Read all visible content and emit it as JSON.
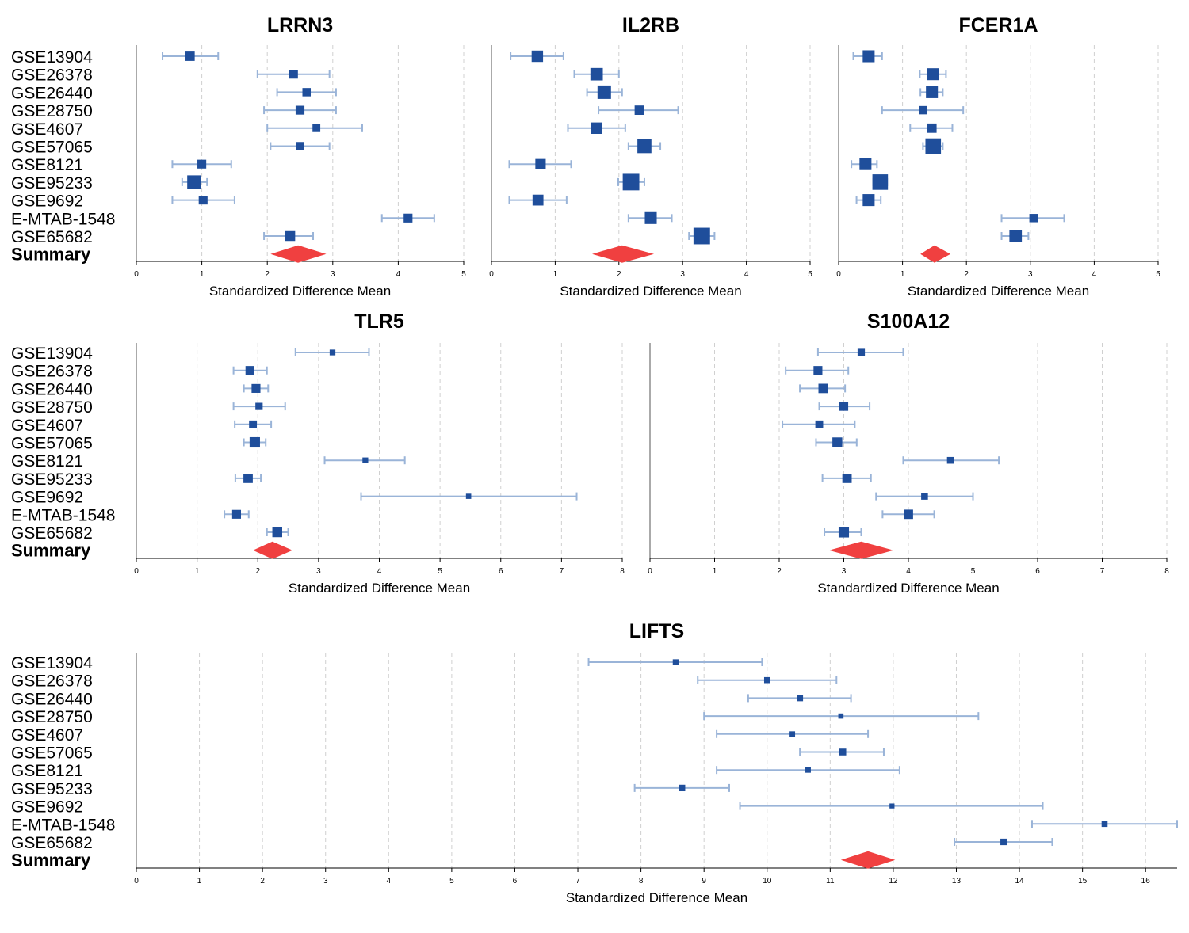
{
  "study_labels": [
    "GSE13904",
    "GSE26378",
    "GSE26440",
    "GSE28750",
    "GSE4607",
    "GSE57065",
    "GSE8121",
    "GSE95233",
    "GSE9692",
    "E-MTAB-1548",
    "GSE65682"
  ],
  "summary_label": "Summary",
  "x_label": "Standardized Difference Mean",
  "colors": {
    "point": "#1f4e9b",
    "ci": "#9ab4d8",
    "summary": "#f04040",
    "grid": "#d0d0d0",
    "axis": "#000000"
  },
  "chart_data": [
    {
      "type": "forest",
      "title": "LRRN3",
      "xlim": [
        0,
        5
      ],
      "xticks": [
        0,
        1,
        2,
        3,
        4,
        5
      ],
      "grid": true,
      "points": [
        0.82,
        2.4,
        2.6,
        2.5,
        2.75,
        2.5,
        1.0,
        0.88,
        1.02,
        4.15,
        2.35
      ],
      "lower": [
        0.4,
        1.85,
        2.15,
        1.95,
        2.0,
        2.05,
        0.55,
        0.7,
        0.55,
        3.75,
        1.95
      ],
      "upper": [
        1.25,
        2.95,
        3.05,
        3.05,
        3.45,
        2.95,
        1.45,
        1.08,
        1.5,
        4.55,
        2.7
      ],
      "weights": [
        1.2,
        1.1,
        1.0,
        1.1,
        0.9,
        1.0,
        1.1,
        2.0,
        1.1,
        1.1,
        1.3
      ],
      "summary": {
        "estimate": 2.47,
        "lower": 2.05,
        "upper": 2.9
      }
    },
    {
      "type": "forest",
      "title": "IL2RB",
      "xlim": [
        0,
        5
      ],
      "xticks": [
        0,
        1,
        2,
        3,
        4,
        5
      ],
      "grid": true,
      "points": [
        0.72,
        1.65,
        1.77,
        2.32,
        1.65,
        2.4,
        0.77,
        2.19,
        0.73,
        2.5,
        3.3
      ],
      "lower": [
        0.3,
        1.3,
        1.5,
        1.68,
        1.2,
        2.15,
        0.28,
        1.99,
        0.28,
        2.15,
        3.1
      ],
      "upper": [
        1.13,
        2.0,
        2.05,
        2.93,
        2.1,
        2.65,
        1.25,
        2.4,
        1.18,
        2.83,
        3.5
      ],
      "weights": [
        1.6,
        1.8,
        2.0,
        1.2,
        1.6,
        2.1,
        1.4,
        2.6,
        1.5,
        1.7,
        2.6
      ],
      "summary": {
        "estimate": 2.05,
        "lower": 1.58,
        "upper": 2.55
      }
    },
    {
      "type": "forest",
      "title": "FCER1A",
      "xlim": [
        0,
        5
      ],
      "xticks": [
        0,
        1,
        2,
        3,
        4,
        5
      ],
      "grid": true,
      "points": [
        0.47,
        1.48,
        1.46,
        1.32,
        1.46,
        1.48,
        0.42,
        0.65,
        0.47,
        3.05,
        2.77
      ],
      "lower": [
        0.23,
        1.27,
        1.28,
        0.68,
        1.12,
        1.32,
        0.2,
        0.54,
        0.28,
        2.55,
        2.55
      ],
      "upper": [
        0.68,
        1.68,
        1.63,
        1.95,
        1.78,
        1.63,
        0.6,
        0.76,
        0.66,
        3.53,
        2.97
      ],
      "weights": [
        1.7,
        1.7,
        1.7,
        1.0,
        1.2,
        2.4,
        1.7,
        2.4,
        1.7,
        1.0,
        1.8
      ],
      "summary": {
        "estimate": 1.5,
        "lower": 1.28,
        "upper": 1.75
      }
    },
    {
      "type": "forest",
      "title": "TLR5",
      "xlim": [
        0,
        8
      ],
      "xticks": [
        0,
        1,
        2,
        3,
        4,
        5,
        6,
        7,
        8
      ],
      "grid": true,
      "points": [
        3.23,
        1.87,
        1.97,
        2.02,
        1.92,
        1.95,
        3.77,
        1.84,
        5.47,
        1.65,
        2.32
      ],
      "lower": [
        2.62,
        1.6,
        1.77,
        1.6,
        1.62,
        1.77,
        3.1,
        1.63,
        3.7,
        1.45,
        2.15
      ],
      "upper": [
        3.83,
        2.15,
        2.17,
        2.45,
        2.22,
        2.13,
        4.42,
        2.05,
        7.25,
        1.85,
        2.5
      ],
      "weights": [
        0.5,
        1.1,
        1.1,
        0.8,
        0.9,
        1.4,
        0.5,
        1.2,
        0.4,
        1.1,
        1.3
      ],
      "summary": {
        "estimate": 2.24,
        "lower": 1.92,
        "upper": 2.57
      }
    },
    {
      "type": "forest",
      "title": "S100A12",
      "xlim": [
        0,
        8
      ],
      "xticks": [
        0,
        1,
        2,
        3,
        4,
        5,
        6,
        7,
        8
      ],
      "grid": true,
      "points": [
        3.27,
        2.6,
        2.68,
        3.0,
        2.62,
        2.9,
        4.65,
        3.05,
        4.25,
        4.0,
        3.0
      ],
      "lower": [
        2.6,
        2.1,
        2.32,
        2.62,
        2.05,
        2.57,
        3.92,
        2.67,
        3.5,
        3.6,
        2.7
      ],
      "upper": [
        3.92,
        3.07,
        3.02,
        3.4,
        3.17,
        3.2,
        5.4,
        3.42,
        5.0,
        4.4,
        3.27
      ],
      "weights": [
        0.8,
        1.1,
        1.2,
        1.1,
        0.9,
        1.3,
        0.7,
        1.2,
        0.7,
        1.2,
        1.4
      ],
      "summary": {
        "estimate": 3.27,
        "lower": 2.77,
        "upper": 3.77
      }
    },
    {
      "type": "forest",
      "title": "LIFTS",
      "xlim": [
        0,
        16.5
      ],
      "xticks": [
        0,
        1,
        2,
        3,
        4,
        5,
        6,
        7,
        8,
        9,
        10,
        11,
        12,
        13,
        14,
        15,
        16
      ],
      "grid": true,
      "points": [
        8.55,
        10.0,
        10.52,
        11.17,
        10.4,
        11.2,
        10.65,
        8.65,
        11.98,
        15.35,
        13.75
      ],
      "lower": [
        7.17,
        8.9,
        9.7,
        9.0,
        9.2,
        10.52,
        9.2,
        7.9,
        9.57,
        14.2,
        12.97
      ],
      "upper": [
        9.92,
        11.1,
        11.33,
        13.35,
        11.6,
        11.85,
        12.1,
        9.4,
        14.37,
        16.5,
        14.52
      ],
      "weights": [
        0.5,
        0.55,
        0.6,
        0.4,
        0.45,
        0.7,
        0.45,
        0.65,
        0.35,
        0.55,
        0.65
      ],
      "summary": {
        "estimate": 11.6,
        "lower": 11.17,
        "upper": 12.03
      }
    }
  ]
}
